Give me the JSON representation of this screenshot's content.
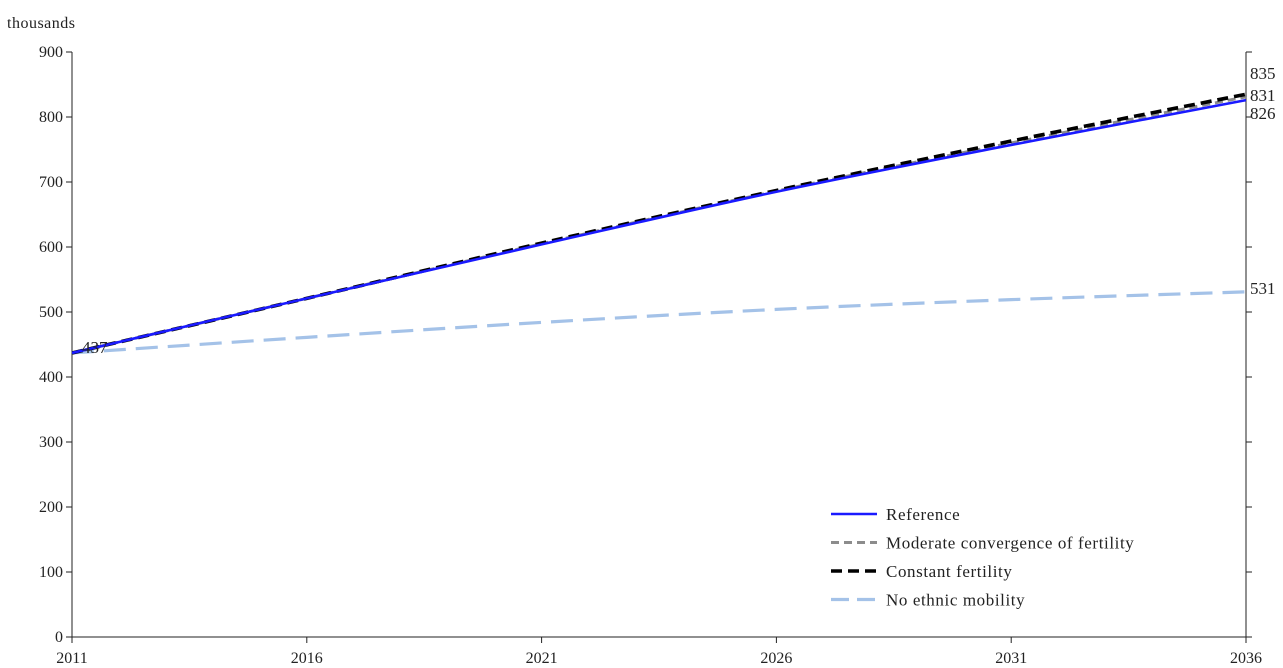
{
  "chart_data": {
    "type": "line",
    "unit_label": "thousands",
    "x": [
      2011,
      2016,
      2021,
      2026,
      2031,
      2036
    ],
    "x_ticks": [
      "2011",
      "2016",
      "2021",
      "2026",
      "2031",
      "2036"
    ],
    "xlim": [
      2011,
      2036
    ],
    "ylim": [
      0,
      900
    ],
    "y_ticks": [
      "0",
      "100",
      "200",
      "300",
      "400",
      "500",
      "600",
      "700",
      "800",
      "900"
    ],
    "grid": false,
    "legend_position": "bottom-right",
    "series": [
      {
        "name": "Reference",
        "color": "#1a1aff",
        "style": "solid",
        "values": [
          437,
          521,
          604,
          685,
          757,
          826
        ]
      },
      {
        "name": "Moderate convergence of fertility",
        "color": "#8c8c8c",
        "style": "dashed",
        "values": [
          437,
          521,
          605,
          686,
          760,
          831
        ]
      },
      {
        "name": "Constant fertility",
        "color": "#000000",
        "style": "dashed",
        "values": [
          437,
          521,
          606,
          687,
          763,
          835
        ]
      },
      {
        "name": "No ethnic mobility",
        "color": "#a4c2e8",
        "style": "long-dashed",
        "values": [
          437,
          461,
          484,
          504,
          519,
          531
        ]
      }
    ],
    "annotations": {
      "start": "437",
      "end_labels": [
        "835",
        "831",
        "826",
        "531"
      ]
    }
  }
}
